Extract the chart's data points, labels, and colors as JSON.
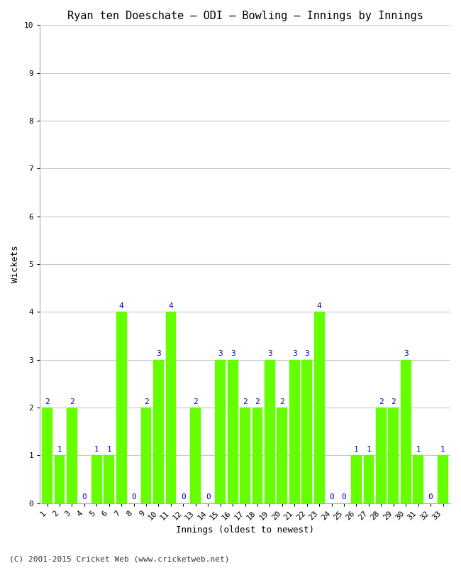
{
  "title": "Ryan ten Doeschate – ODI – Bowling – Innings by Innings",
  "xlabel": "Innings (oldest to newest)",
  "ylabel": "Wickets",
  "footer": "(C) 2001-2015 Cricket Web (www.cricketweb.net)",
  "innings": [
    1,
    2,
    3,
    4,
    5,
    6,
    7,
    8,
    9,
    10,
    11,
    12,
    13,
    14,
    15,
    16,
    17,
    18,
    19,
    20,
    21,
    22,
    23,
    24,
    25,
    26,
    27,
    28,
    29,
    30,
    31,
    32,
    33
  ],
  "wickets": [
    2,
    1,
    2,
    0,
    1,
    1,
    4,
    0,
    2,
    3,
    4,
    0,
    2,
    0,
    3,
    3,
    2,
    2,
    3,
    2,
    3,
    3,
    4,
    0,
    0,
    1,
    1,
    2,
    2,
    3,
    1,
    0,
    1
  ],
  "bar_color": "#66ff00",
  "bar_edge_color": "#66ff00",
  "label_color": "#0000cc",
  "background_color": "#ffffff",
  "grid_color": "#c8c8c8",
  "ylim": [
    0,
    10
  ],
  "yticks": [
    0,
    1,
    2,
    3,
    4,
    5,
    6,
    7,
    8,
    9,
    10
  ],
  "title_fontsize": 11,
  "axis_label_fontsize": 9,
  "tick_fontsize": 8,
  "value_label_fontsize": 8
}
